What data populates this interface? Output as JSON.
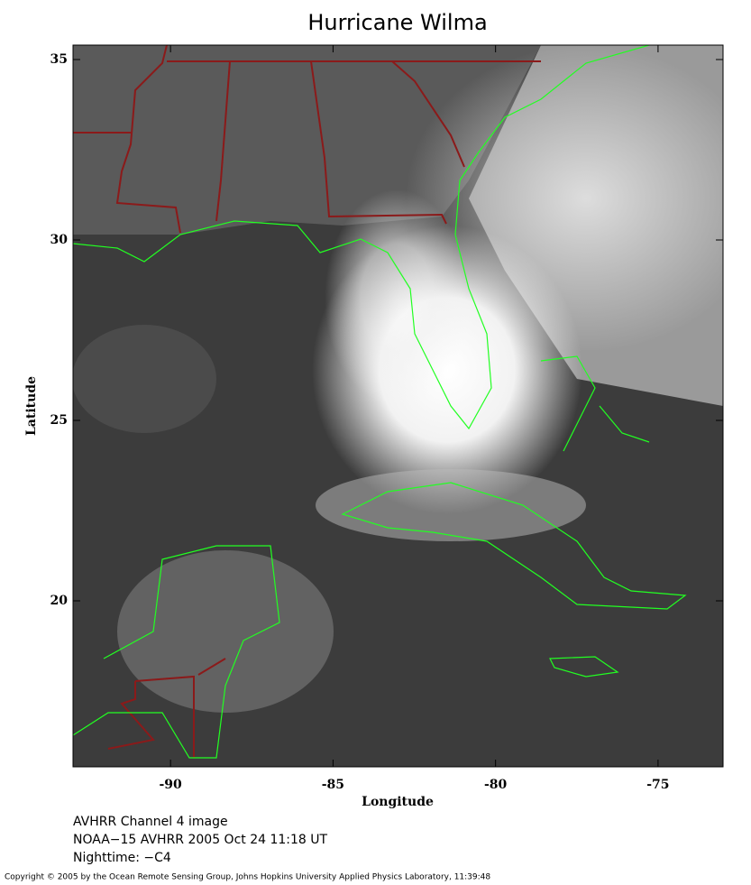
{
  "chart_data": {
    "type": "map",
    "title": "Hurricane Wilma",
    "xlabel": "Longitude",
    "ylabel": "Latitude",
    "xlim": [
      -93,
      -73
    ],
    "ylim": [
      15.4,
      35.4
    ],
    "xticks": [
      -90,
      -85,
      -80,
      -75
    ],
    "yticks": [
      20,
      25,
      30,
      35
    ],
    "notes": [
      "AVHRR Channel 4 image",
      "NOAA−15 AVHRR 2005 Oct 24 11:18 UT",
      "Nighttime: −C4"
    ],
    "copyright": "Copyright © 2005 by the Ocean Remote Sensing Group, Johns Hopkins University Applied Physics Laboratory, 11:39:48"
  }
}
